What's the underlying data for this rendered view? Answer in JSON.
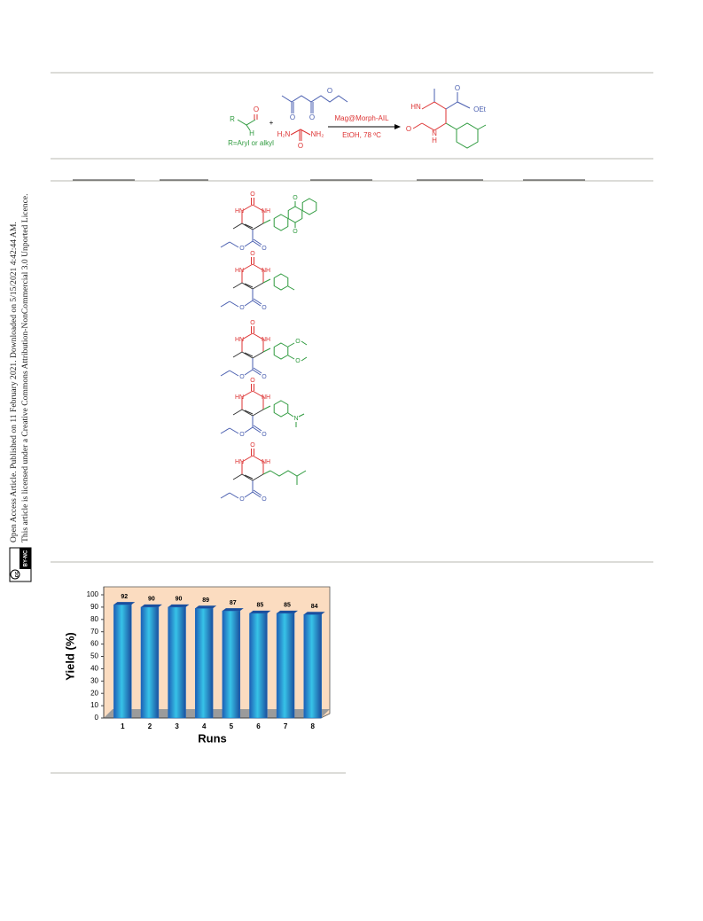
{
  "sidebar": {
    "line1": "Open Access Article. Published on 11 February 2021. Downloaded on 5/15/2021 4:42:44 AM.",
    "line2": "This article is licensed under a Creative Commons Attribution-NonCommercial 3.0 Unported Licence.",
    "cc": "cc",
    "badge": "BY-NC"
  },
  "scheme": {
    "aldehyde": {
      "r": "R",
      "o": "O",
      "h": "H"
    },
    "r_note": "R=Aryl or alkyl",
    "plus": "+",
    "ketoester": {
      "o1": "O",
      "o2": "O",
      "o3": "O"
    },
    "urea": {
      "h2n": "H₂N",
      "nh2": "NH₂",
      "o": "O"
    },
    "catalyst": "Mag@Morph-AIL",
    "conditions": "EtOH, 78 ºC",
    "product": {
      "hn": "HN",
      "o": "O",
      "n": "N",
      "h": "H",
      "o2": "O",
      "oet": "OEt"
    }
  },
  "table": {
    "rows": [
      {
        "atoms": [
          "O",
          "HN",
          "NH",
          "O",
          "O"
        ],
        "extra": [
          "O",
          "O"
        ]
      },
      {
        "atoms": [
          "O",
          "HN",
          "NH",
          "O",
          "O"
        ],
        "extra": []
      },
      {
        "atoms": [
          "O",
          "HN",
          "NH",
          "O",
          "O"
        ],
        "extra": [
          "O",
          "O"
        ]
      },
      {
        "atoms": [
          "O",
          "HN",
          "NH",
          "O",
          "O"
        ],
        "extra": [
          "N"
        ]
      },
      {
        "atoms": [
          "O",
          "HN",
          "NH",
          "O",
          "O"
        ],
        "extra": []
      }
    ]
  },
  "chart_data": {
    "type": "bar",
    "categories": [
      "1",
      "2",
      "3",
      "4",
      "5",
      "6",
      "7",
      "8"
    ],
    "values": [
      92,
      90,
      90,
      89,
      87,
      85,
      85,
      84
    ],
    "ylim": [
      0,
      100
    ],
    "yticks": [
      0,
      10,
      20,
      30,
      40,
      50,
      60,
      70,
      80,
      90,
      100
    ],
    "y_label": "Yield (%)",
    "x_label": "Runs",
    "color": "#1f6fc4"
  }
}
